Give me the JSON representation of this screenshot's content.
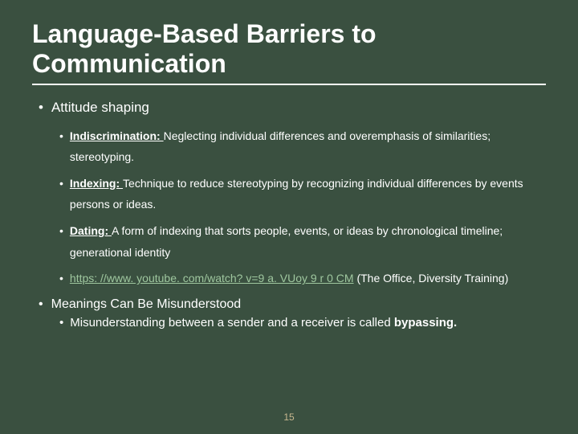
{
  "slide": {
    "background_color": "#3a5040",
    "text_color": "#ffffff",
    "link_color": "#9fc79f",
    "pagenum_color": "#c8b890",
    "title_fontsize": 32,
    "l1_fontsize": 17,
    "l2_fontsize": 14,
    "title": "Language-Based Barriers to Communication",
    "section1_heading": "Attitude shaping",
    "items": [
      {
        "term": "Indiscrimination: ",
        "desc": "Neglecting individual differences and overemphasis of similarities; stereotyping."
      },
      {
        "term": "Indexing: ",
        "desc": "Technique to reduce stereotyping by recognizing individual differences by events persons or ideas."
      },
      {
        "term": "Dating: ",
        "desc": "A form of indexing that sorts people, events, or ideas by chronological timeline; generational identity"
      }
    ],
    "link_url": "https: //www. youtube. com/watch? v=9 a. VUoy 9 r 0 CM",
    "link_note": "  (The Office, Diversity Training)",
    "section2_heading": "Meanings Can Be Misunderstood",
    "section2_sub_pre": "Misunderstanding between a sender and a receiver is called ",
    "section2_sub_bold": "bypassing.",
    "page_number": "15"
  }
}
